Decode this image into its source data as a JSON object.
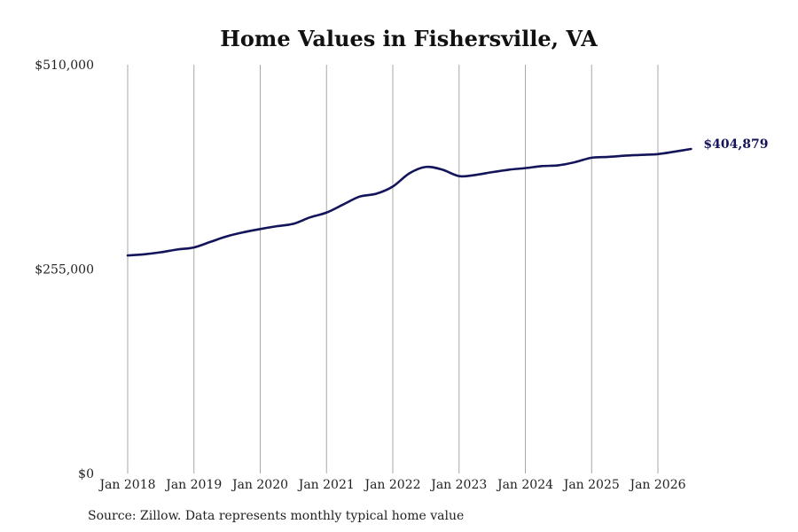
{
  "chart_data": {
    "type": "line",
    "title": "Home Values in Fishersville, VA",
    "x_tick_labels": [
      "Jan 2018",
      "Jan 2019",
      "Jan 2020",
      "Jan 2021",
      "Jan 2022",
      "Jan 2023",
      "Jan 2024",
      "Jan 2025",
      "Jan 2026"
    ],
    "y_tick_labels": [
      "$0",
      "$255,000",
      "$510,000"
    ],
    "y_ticks": [
      0,
      255000,
      510000
    ],
    "ylim": [
      0,
      510000
    ],
    "xlim": [
      "2018-01",
      "2026-07"
    ],
    "grid": "vertical lines at x ticks",
    "line_color": "#14145a",
    "end_label": "$404,879",
    "series": [
      {
        "x": [
          "2018-01",
          "2018-04",
          "2018-07",
          "2018-10",
          "2019-01",
          "2019-04",
          "2019-07",
          "2019-10",
          "2020-01",
          "2020-04",
          "2020-07",
          "2020-10",
          "2021-01",
          "2021-04",
          "2021-07",
          "2021-10",
          "2022-01",
          "2022-04",
          "2022-07",
          "2022-10",
          "2023-01",
          "2023-04",
          "2023-07",
          "2023-10",
          "2024-01",
          "2024-04",
          "2024-07",
          "2024-10",
          "2025-01",
          "2025-04",
          "2025-07",
          "2025-10",
          "2026-01",
          "2026-04",
          "2026-07"
        ],
        "values": [
          272000,
          273500,
          276000,
          279500,
          282000,
          289000,
          296000,
          301000,
          305000,
          308500,
          311500,
          319500,
          325500,
          335500,
          345500,
          349000,
          358000,
          374500,
          382500,
          379000,
          371000,
          372500,
          376000,
          379000,
          381000,
          383500,
          384500,
          388500,
          394000,
          395000,
          396500,
          397500,
          398500,
          401500,
          404879
        ]
      }
    ]
  },
  "source": "Source: Zillow. Data represents monthly typical home value"
}
